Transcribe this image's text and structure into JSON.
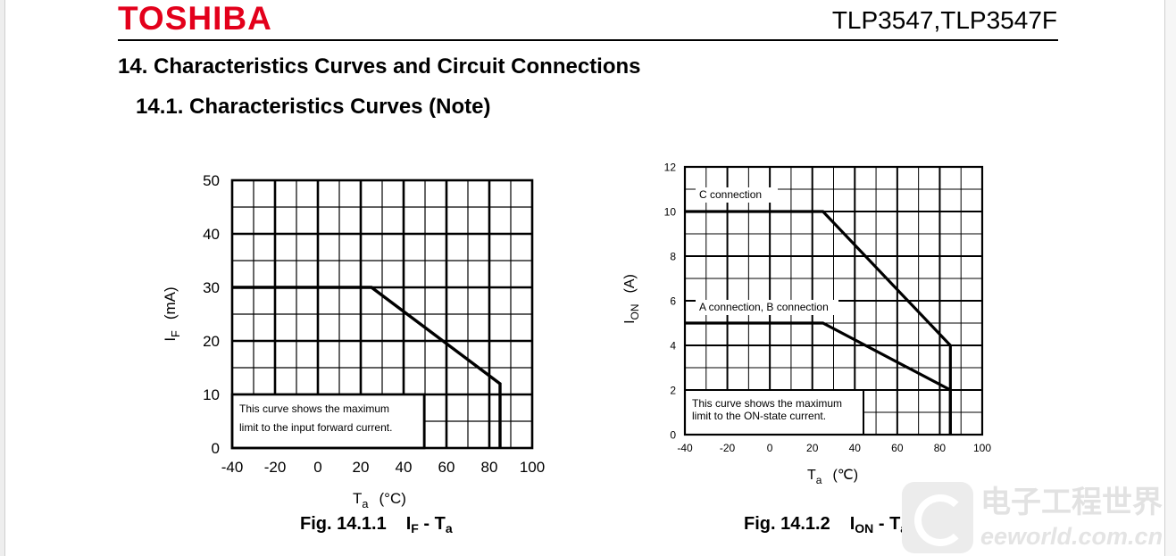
{
  "header": {
    "brand": "TOSHIBA",
    "model": "TLP3547,TLP3547F"
  },
  "section_title": "14. Characteristics Curves and Circuit Connections",
  "subsection_title": "14.1. Characteristics Curves (Note)",
  "chart_data": [
    {
      "type": "line",
      "caption": {
        "fig": "Fig. 14.1.1",
        "y": "I",
        "y_sub": "F",
        "x": "T",
        "x_sub": "a"
      },
      "xlabel": {
        "main": "T",
        "sub": "a",
        "unit": "(°C)"
      },
      "ylabel": {
        "main": "I",
        "sub": "F",
        "unit": "(mA)"
      },
      "xlim": [
        -40,
        100
      ],
      "ylim": [
        0,
        50
      ],
      "xticks": [
        "-40",
        "-20",
        "0",
        "20",
        "40",
        "60",
        "80",
        "100"
      ],
      "yticks": [
        "0",
        "10",
        "20",
        "30",
        "40",
        "50"
      ],
      "grid": true,
      "minor_divisions": 2,
      "series": [
        {
          "x": [
            -40,
            25,
            85,
            85
          ],
          "y": [
            30,
            30,
            12,
            0
          ]
        }
      ],
      "note": [
        "This curve shows the maximum",
        "limit to the input forward current."
      ]
    },
    {
      "type": "line",
      "caption": {
        "fig": "Fig. 14.1.2",
        "y": "I",
        "y_sub": "ON",
        "x": "T",
        "x_sub": "a"
      },
      "xlabel": {
        "main": "T",
        "sub": "a",
        "unit": "(℃)"
      },
      "ylabel": {
        "main": "I",
        "sub": "ON",
        "unit": "(A)"
      },
      "xlim": [
        -40,
        100
      ],
      "ylim": [
        0,
        12
      ],
      "xticks": [
        "-40",
        "-20",
        "0",
        "20",
        "40",
        "60",
        "80",
        "100"
      ],
      "yticks": [
        "0",
        "2",
        "4",
        "6",
        "8",
        "10",
        "12"
      ],
      "grid": true,
      "minor_divisions": 2,
      "series": [
        {
          "name": "C connection",
          "x": [
            -40,
            25,
            85,
            85
          ],
          "y": [
            10,
            10,
            4,
            0
          ]
        },
        {
          "name": "A connection, B connection",
          "x": [
            -40,
            25,
            85,
            85
          ],
          "y": [
            5,
            5,
            2,
            0
          ]
        }
      ],
      "note": [
        "This curve shows the maximum",
        "limit to the ON-state current."
      ]
    }
  ],
  "watermark": {
    "chinese": "电子工程世界",
    "url": "eeworld.com.cn"
  }
}
